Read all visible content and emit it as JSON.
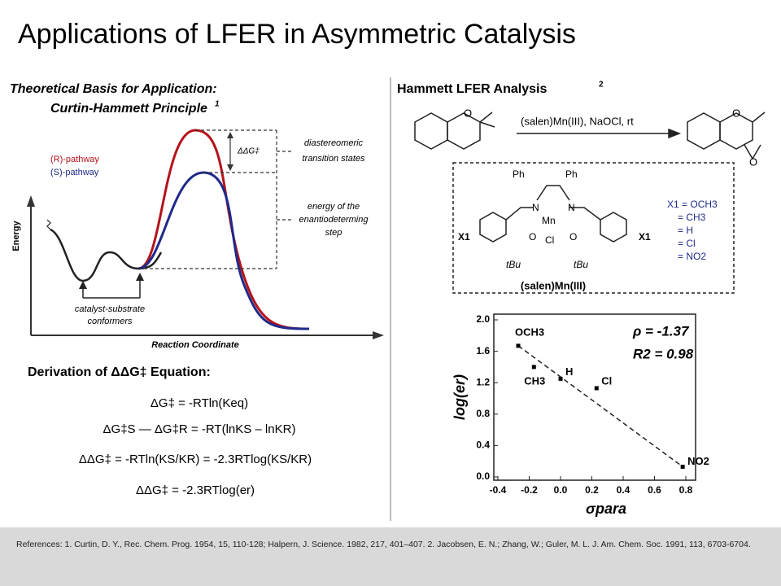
{
  "title": "Applications of LFER in Asymmetric Catalysis",
  "left": {
    "heading": "Theoretical Basis for Application:",
    "subheading": "Curtin-Hammett Principle",
    "subheading_ref": "1",
    "diagram": {
      "y_label": "Energy",
      "x_label": "Reaction Coordinate",
      "legend": [
        "(R)-pathway",
        "(S)-pathway"
      ],
      "ddg": "ΔΔG‡",
      "annotation_ts": [
        "diastereomeric",
        "transition states"
      ],
      "annotation_step": [
        "energy of the",
        "enantiodeterming",
        "step"
      ],
      "annotation_conf": [
        "catalyst-substrate",
        "conformers"
      ]
    },
    "derivation": {
      "heading": "Derivation of ΔΔG‡ Equation:",
      "equations": [
        "ΔG‡ = -RTln(Keq)",
        "ΔG‡S — ΔG‡R = -RT(lnKS – lnKR)",
        "ΔΔG‡ = -RTln(KS/KR) = -2.3RTlog(KS/KR)",
        "ΔΔG‡ = -2.3RTlog(er)"
      ]
    }
  },
  "right": {
    "heading": "Hammett LFER Analysis",
    "heading_ref": "2",
    "reagents": "(salen)Mn(III), NaOCl, rt",
    "catalyst_name": "(salen)Mn(III)",
    "catalyst_atoms": [
      "Ph",
      "Ph",
      "N",
      "N",
      "Mn",
      "O",
      "O",
      "Cl",
      "tBu",
      "tBu",
      "X1",
      "X1"
    ],
    "substituents": [
      "X1 = OCH3",
      "= CH3",
      "= H",
      "= Cl",
      "= NO2"
    ]
  },
  "chart_data": {
    "type": "scatter",
    "x": [
      -0.27,
      -0.17,
      0.0,
      0.23,
      0.78
    ],
    "values": [
      1.67,
      1.4,
      1.25,
      1.13,
      0.13
    ],
    "point_labels": [
      "OCH3",
      "CH3",
      "H",
      "Cl",
      "NO2"
    ],
    "color": "#000000",
    "trendline": {
      "x": [
        -0.27,
        0.78
      ],
      "y": [
        1.67,
        0.13
      ]
    },
    "xlim": [
      -0.4,
      0.8
    ],
    "ylim": [
      0,
      2
    ],
    "xticks": [
      -0.4,
      -0.2,
      {
        "value": 0,
        "label": "0.0"
      },
      0.2,
      0.4,
      0.6,
      0.8
    ],
    "yticks": [
      {
        "value": 0,
        "label": "0.0"
      },
      0.4,
      0.8,
      1.2,
      1.6,
      {
        "value": 2,
        "label": "2.0"
      }
    ],
    "xlabel": "σpara",
    "ylabel": "log(er)",
    "annotations": [
      "ρ = -1.37",
      "R2 = 0.98"
    ]
  },
  "references": "References: 1. Curtin, D. Y., Rec. Chem. Prog. 1954, 15, 110-128; Halpern, J. Science. 1982, 217, 401–407. 2. Jacobsen, E. N.; Zhang, W.; Guler, M. L. J. Am. Chem. Soc. 1991, 113, 6703-6704."
}
